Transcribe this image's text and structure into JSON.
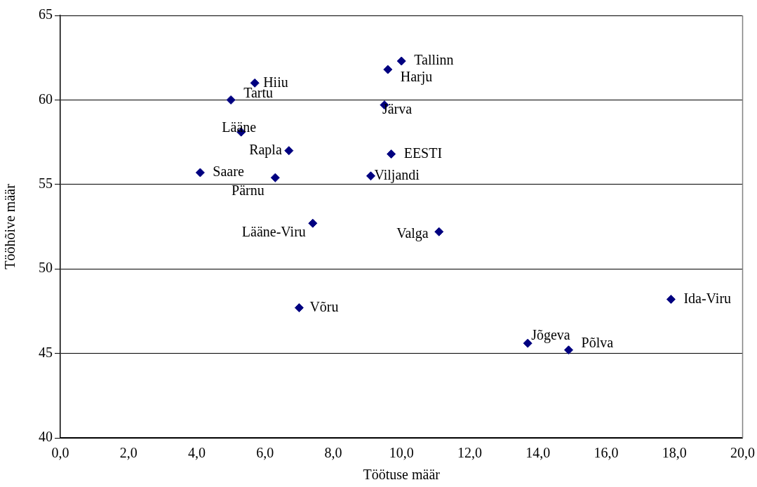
{
  "chart_data": {
    "type": "scatter",
    "xlabel": "Töötuse määr",
    "ylabel": "Tööhõive määr",
    "x": [
      10.0,
      9.6,
      5.7,
      5.0,
      9.5,
      5.3,
      6.7,
      9.7,
      4.1,
      6.3,
      9.1,
      7.4,
      11.1,
      7.0,
      17.9,
      13.7,
      14.9
    ],
    "series": [
      {
        "color": "#000080",
        "values": [
          62.3,
          61.8,
          61.0,
          60.0,
          59.7,
          58.1,
          57.0,
          56.8,
          55.7,
          55.4,
          55.5,
          52.7,
          52.2,
          47.7,
          48.2,
          45.6,
          45.2
        ]
      }
    ],
    "annotations": [
      {
        "text": "Tallinn",
        "x": 10.0,
        "y": 62.3
      },
      {
        "text": "Harju",
        "x": 9.6,
        "y": 61.8
      },
      {
        "text": "Hiiu",
        "x": 5.7,
        "y": 61.0
      },
      {
        "text": "Tartu",
        "x": 5.0,
        "y": 60.0
      },
      {
        "text": "Järva",
        "x": 9.5,
        "y": 59.7
      },
      {
        "text": "Lääne",
        "x": 5.3,
        "y": 58.1
      },
      {
        "text": "Rapla",
        "x": 6.7,
        "y": 57.0
      },
      {
        "text": "EESTI",
        "x": 9.7,
        "y": 56.8
      },
      {
        "text": "Saare",
        "x": 4.1,
        "y": 55.7
      },
      {
        "text": "Pärnu",
        "x": 6.3,
        "y": 55.4
      },
      {
        "text": "Viljandi",
        "x": 9.1,
        "y": 55.5
      },
      {
        "text": "Lääne-Viru",
        "x": 7.4,
        "y": 52.7
      },
      {
        "text": "Valga",
        "x": 11.1,
        "y": 52.2
      },
      {
        "text": "Võru",
        "x": 7.0,
        "y": 47.7
      },
      {
        "text": "Ida-Viru",
        "x": 17.9,
        "y": 48.2
      },
      {
        "text": "Jõgeva",
        "x": 13.7,
        "y": 45.6
      },
      {
        "text": "Põlva",
        "x": 14.9,
        "y": 45.2
      }
    ],
    "xlim": [
      0,
      20
    ],
    "xticks": [
      {
        "value": 0,
        "label": "0,0"
      },
      {
        "value": 2,
        "label": "2,0"
      },
      {
        "value": 4,
        "label": "4,0"
      },
      {
        "value": 6,
        "label": "6,0"
      },
      {
        "value": 8,
        "label": "8,0"
      },
      {
        "value": 10,
        "label": "10,0"
      },
      {
        "value": 12,
        "label": "12,0"
      },
      {
        "value": 14,
        "label": "14,0"
      },
      {
        "value": 16,
        "label": "16,0"
      },
      {
        "value": 18,
        "label": "18,0"
      },
      {
        "value": 20,
        "label": "20,0"
      }
    ],
    "ylim": [
      40,
      65
    ],
    "yticks": [
      40,
      45,
      50,
      55,
      60,
      65
    ],
    "grid": "y",
    "legend": false,
    "marker": "diamond"
  }
}
